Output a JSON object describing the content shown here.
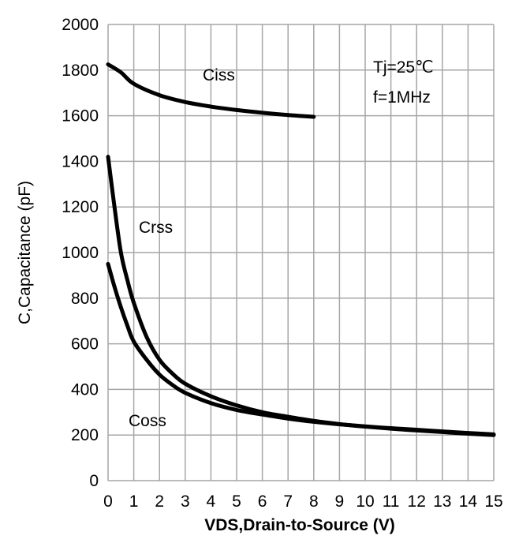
{
  "chart_data": {
    "type": "line",
    "title": "",
    "xlabel": "VDS,Drain-to-Source (V)",
    "ylabel": "C,Capacitance (pF)",
    "xlim": [
      0,
      15
    ],
    "ylim": [
      0,
      2000
    ],
    "x_ticks": [
      "0",
      "1",
      "2",
      "3",
      "4",
      "5",
      "6",
      "7",
      "8",
      "9",
      "10",
      "11",
      "12",
      "13",
      "14",
      "15"
    ],
    "y_ticks": [
      "0",
      "200",
      "400",
      "600",
      "800",
      "1000",
      "1200",
      "1400",
      "1600",
      "1800",
      "2000"
    ],
    "grid": true,
    "series": [
      {
        "name": "Ciss",
        "color": "#000000",
        "x": [
          0,
          0.5,
          1,
          2,
          3,
          4,
          5,
          6,
          7,
          8
        ],
        "y": [
          1825,
          1790,
          1740,
          1690,
          1660,
          1640,
          1625,
          1613,
          1603,
          1595
        ]
      },
      {
        "name": "Crss",
        "color": "#000000",
        "x": [
          0,
          0.25,
          0.5,
          0.75,
          1,
          1.5,
          2,
          2.5,
          3,
          4,
          5,
          6,
          7,
          8,
          9,
          10,
          11,
          12,
          13,
          14,
          15
        ],
        "y": [
          1420,
          1200,
          1000,
          880,
          780,
          630,
          530,
          470,
          425,
          370,
          330,
          300,
          280,
          262,
          248,
          237,
          228,
          220,
          213,
          206,
          200
        ]
      },
      {
        "name": "Coss",
        "color": "#000000",
        "x": [
          0,
          0.25,
          0.5,
          0.75,
          1,
          1.5,
          2,
          2.5,
          3,
          4,
          5,
          6,
          7,
          8,
          9,
          10,
          11,
          12,
          13,
          14,
          15
        ],
        "y": [
          950,
          850,
          760,
          680,
          610,
          530,
          465,
          420,
          385,
          340,
          310,
          290,
          272,
          258,
          247,
          238,
          230,
          223,
          216,
          209,
          203
        ]
      }
    ],
    "annotations": [
      "Tj=25℃",
      "f=1MHz"
    ]
  }
}
